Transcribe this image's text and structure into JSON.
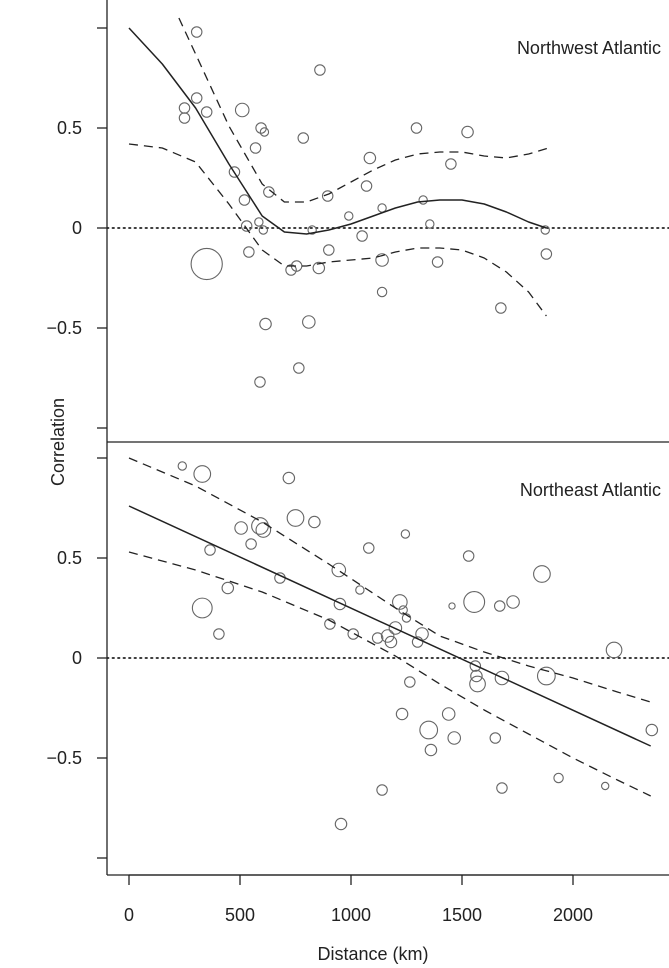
{
  "chart_data": [
    {
      "type": "scatter",
      "title": "Northwest Atlantic",
      "xlabel": "",
      "ylabel": "Correlation",
      "xlim": [
        -50,
        2400
      ],
      "ylim": [
        -1.0,
        1.0
      ],
      "yticks": [
        -0.5,
        0,
        0.5
      ],
      "reference_line": 0,
      "points": [
        {
          "x": 250,
          "y": 0.6,
          "size": 1
        },
        {
          "x": 250,
          "y": 0.55,
          "size": 1
        },
        {
          "x": 305,
          "y": 0.98,
          "size": 1
        },
        {
          "x": 305,
          "y": 0.65,
          "size": 1
        },
        {
          "x": 350,
          "y": 0.58,
          "size": 1
        },
        {
          "x": 350,
          "y": -0.18,
          "size": 3
        },
        {
          "x": 475,
          "y": 0.28,
          "size": 1
        },
        {
          "x": 510,
          "y": 0.59,
          "size": 1.3
        },
        {
          "x": 520,
          "y": 0.14,
          "size": 1
        },
        {
          "x": 530,
          "y": 0.01,
          "size": 1
        },
        {
          "x": 540,
          "y": -0.12,
          "size": 1
        },
        {
          "x": 570,
          "y": 0.4,
          "size": 1
        },
        {
          "x": 585,
          "y": 0.03,
          "size": 0.8
        },
        {
          "x": 590,
          "y": -0.77,
          "size": 1
        },
        {
          "x": 595,
          "y": 0.5,
          "size": 1
        },
        {
          "x": 605,
          "y": -0.01,
          "size": 0.8
        },
        {
          "x": 610,
          "y": 0.48,
          "size": 0.8
        },
        {
          "x": 615,
          "y": -0.48,
          "size": 1.1
        },
        {
          "x": 630,
          "y": 0.18,
          "size": 1
        },
        {
          "x": 730,
          "y": -0.21,
          "size": 1
        },
        {
          "x": 755,
          "y": -0.19,
          "size": 1
        },
        {
          "x": 765,
          "y": -0.7,
          "size": 1
        },
        {
          "x": 785,
          "y": 0.45,
          "size": 1
        },
        {
          "x": 810,
          "y": -0.47,
          "size": 1.2
        },
        {
          "x": 825,
          "y": -0.01,
          "size": 0.8
        },
        {
          "x": 855,
          "y": -0.2,
          "size": 1.1
        },
        {
          "x": 860,
          "y": 0.79,
          "size": 1
        },
        {
          "x": 895,
          "y": 0.16,
          "size": 1
        },
        {
          "x": 900,
          "y": -0.11,
          "size": 1
        },
        {
          "x": 990,
          "y": 0.06,
          "size": 0.8
        },
        {
          "x": 1050,
          "y": -0.04,
          "size": 1
        },
        {
          "x": 1070,
          "y": 0.21,
          "size": 1
        },
        {
          "x": 1085,
          "y": 0.35,
          "size": 1.1
        },
        {
          "x": 1140,
          "y": 0.1,
          "size": 0.8
        },
        {
          "x": 1140,
          "y": -0.16,
          "size": 1.2
        },
        {
          "x": 1140,
          "y": -0.32,
          "size": 0.9
        },
        {
          "x": 1295,
          "y": 0.5,
          "size": 1
        },
        {
          "x": 1325,
          "y": 0.14,
          "size": 0.8
        },
        {
          "x": 1355,
          "y": 0.02,
          "size": 0.8
        },
        {
          "x": 1390,
          "y": -0.17,
          "size": 1
        },
        {
          "x": 1450,
          "y": 0.32,
          "size": 1
        },
        {
          "x": 1525,
          "y": 0.48,
          "size": 1.1
        },
        {
          "x": 1675,
          "y": -0.4,
          "size": 1
        },
        {
          "x": 1875,
          "y": -0.01,
          "size": 0.8
        },
        {
          "x": 1880,
          "y": -0.13,
          "size": 1
        }
      ],
      "fit": {
        "x": [
          0,
          150,
          300,
          450,
          600,
          700,
          800,
          900,
          1000,
          1100,
          1200,
          1300,
          1400,
          1500,
          1600,
          1700,
          1800,
          1880
        ],
        "y": [
          1.0,
          0.82,
          0.6,
          0.32,
          0.06,
          -0.02,
          -0.03,
          -0.01,
          0.02,
          0.06,
          0.1,
          0.13,
          0.14,
          0.14,
          0.12,
          0.08,
          0.03,
          0.0
        ]
      },
      "upper": {
        "x": [
          225,
          300,
          450,
          600,
          700,
          800,
          900,
          1000,
          1100,
          1200,
          1300,
          1400,
          1500,
          1600,
          1700,
          1800,
          1890
        ],
        "y": [
          1.05,
          0.87,
          0.51,
          0.22,
          0.13,
          0.13,
          0.17,
          0.23,
          0.29,
          0.34,
          0.37,
          0.38,
          0.38,
          0.36,
          0.35,
          0.37,
          0.4
        ]
      },
      "lower": {
        "x": [
          0,
          150,
          300,
          450,
          600,
          700,
          800,
          900,
          1000,
          1100,
          1200,
          1300,
          1400,
          1500,
          1600,
          1700,
          1800,
          1880
        ],
        "y": [
          0.42,
          0.4,
          0.33,
          0.12,
          -0.11,
          -0.19,
          -0.19,
          -0.17,
          -0.16,
          -0.15,
          -0.12,
          -0.1,
          -0.1,
          -0.11,
          -0.15,
          -0.22,
          -0.32,
          -0.44
        ]
      }
    },
    {
      "type": "scatter",
      "title": "Northeast Atlantic",
      "xlabel": "Distance (km)",
      "ylabel": "",
      "xlim": [
        -50,
        2400
      ],
      "ylim": [
        -1.0,
        1.0
      ],
      "xticks": [
        0,
        500,
        1000,
        1500,
        2000
      ],
      "yticks": [
        -0.5,
        0,
        0.5
      ],
      "reference_line": 0,
      "points": [
        {
          "x": 240,
          "y": 0.96,
          "size": 0.8
        },
        {
          "x": 330,
          "y": 0.92,
          "size": 1.6
        },
        {
          "x": 330,
          "y": 0.25,
          "size": 1.9
        },
        {
          "x": 365,
          "y": 0.54,
          "size": 1
        },
        {
          "x": 405,
          "y": 0.12,
          "size": 1
        },
        {
          "x": 445,
          "y": 0.35,
          "size": 1.1
        },
        {
          "x": 505,
          "y": 0.65,
          "size": 1.2
        },
        {
          "x": 550,
          "y": 0.57,
          "size": 1
        },
        {
          "x": 590,
          "y": 0.66,
          "size": 1.6
        },
        {
          "x": 605,
          "y": 0.64,
          "size": 1.4
        },
        {
          "x": 680,
          "y": 0.4,
          "size": 1
        },
        {
          "x": 720,
          "y": 0.9,
          "size": 1.1
        },
        {
          "x": 750,
          "y": 0.7,
          "size": 1.6
        },
        {
          "x": 835,
          "y": 0.68,
          "size": 1.1
        },
        {
          "x": 905,
          "y": 0.17,
          "size": 1
        },
        {
          "x": 945,
          "y": 0.44,
          "size": 1.3
        },
        {
          "x": 950,
          "y": 0.27,
          "size": 1.1
        },
        {
          "x": 955,
          "y": -0.83,
          "size": 1.1
        },
        {
          "x": 1010,
          "y": 0.12,
          "size": 1
        },
        {
          "x": 1040,
          "y": 0.34,
          "size": 0.8
        },
        {
          "x": 1080,
          "y": 0.55,
          "size": 1
        },
        {
          "x": 1120,
          "y": 0.1,
          "size": 1
        },
        {
          "x": 1140,
          "y": -0.66,
          "size": 1
        },
        {
          "x": 1165,
          "y": 0.11,
          "size": 1.2
        },
        {
          "x": 1180,
          "y": 0.08,
          "size": 1.1
        },
        {
          "x": 1200,
          "y": 0.15,
          "size": 1.2
        },
        {
          "x": 1220,
          "y": 0.28,
          "size": 1.4
        },
        {
          "x": 1230,
          "y": -0.28,
          "size": 1.1
        },
        {
          "x": 1235,
          "y": 0.24,
          "size": 0.8
        },
        {
          "x": 1245,
          "y": 0.62,
          "size": 0.8
        },
        {
          "x": 1250,
          "y": 0.2,
          "size": 0.8
        },
        {
          "x": 1265,
          "y": -0.12,
          "size": 1
        },
        {
          "x": 1300,
          "y": 0.08,
          "size": 1
        },
        {
          "x": 1320,
          "y": 0.12,
          "size": 1.2
        },
        {
          "x": 1350,
          "y": -0.36,
          "size": 1.7
        },
        {
          "x": 1360,
          "y": -0.46,
          "size": 1.1
        },
        {
          "x": 1440,
          "y": -0.28,
          "size": 1.2
        },
        {
          "x": 1455,
          "y": 0.26,
          "size": 0.6
        },
        {
          "x": 1465,
          "y": -0.4,
          "size": 1.2
        },
        {
          "x": 1530,
          "y": 0.51,
          "size": 1
        },
        {
          "x": 1555,
          "y": 0.28,
          "size": 2
        },
        {
          "x": 1560,
          "y": -0.04,
          "size": 1
        },
        {
          "x": 1565,
          "y": -0.09,
          "size": 1.1
        },
        {
          "x": 1570,
          "y": -0.13,
          "size": 1.5
        },
        {
          "x": 1650,
          "y": -0.4,
          "size": 1
        },
        {
          "x": 1670,
          "y": 0.26,
          "size": 1
        },
        {
          "x": 1680,
          "y": -0.1,
          "size": 1.3
        },
        {
          "x": 1680,
          "y": -0.65,
          "size": 1
        },
        {
          "x": 1730,
          "y": 0.28,
          "size": 1.2
        },
        {
          "x": 1860,
          "y": 0.42,
          "size": 1.6
        },
        {
          "x": 1880,
          "y": -0.09,
          "size": 1.7
        },
        {
          "x": 1935,
          "y": -0.6,
          "size": 0.9
        },
        {
          "x": 2145,
          "y": -0.64,
          "size": 0.7
        },
        {
          "x": 2185,
          "y": 0.04,
          "size": 1.5
        },
        {
          "x": 2355,
          "y": -0.36,
          "size": 1.1
        }
      ],
      "fit": {
        "x": [
          0,
          2350
        ],
        "y": [
          0.76,
          -0.44
        ]
      },
      "upper": {
        "x": [
          0,
          300,
          600,
          900,
          1200,
          1400,
          1600,
          1800,
          2000,
          2200,
          2350
        ],
        "y": [
          1.0,
          0.86,
          0.68,
          0.47,
          0.25,
          0.11,
          0.03,
          -0.04,
          -0.1,
          -0.17,
          -0.22
        ]
      },
      "lower": {
        "x": [
          0,
          300,
          600,
          900,
          1200,
          1400,
          1600,
          1800,
          2000,
          2200,
          2350
        ],
        "y": [
          0.53,
          0.44,
          0.33,
          0.19,
          0.01,
          -0.13,
          -0.26,
          -0.38,
          -0.5,
          -0.61,
          -0.69
        ]
      }
    }
  ]
}
